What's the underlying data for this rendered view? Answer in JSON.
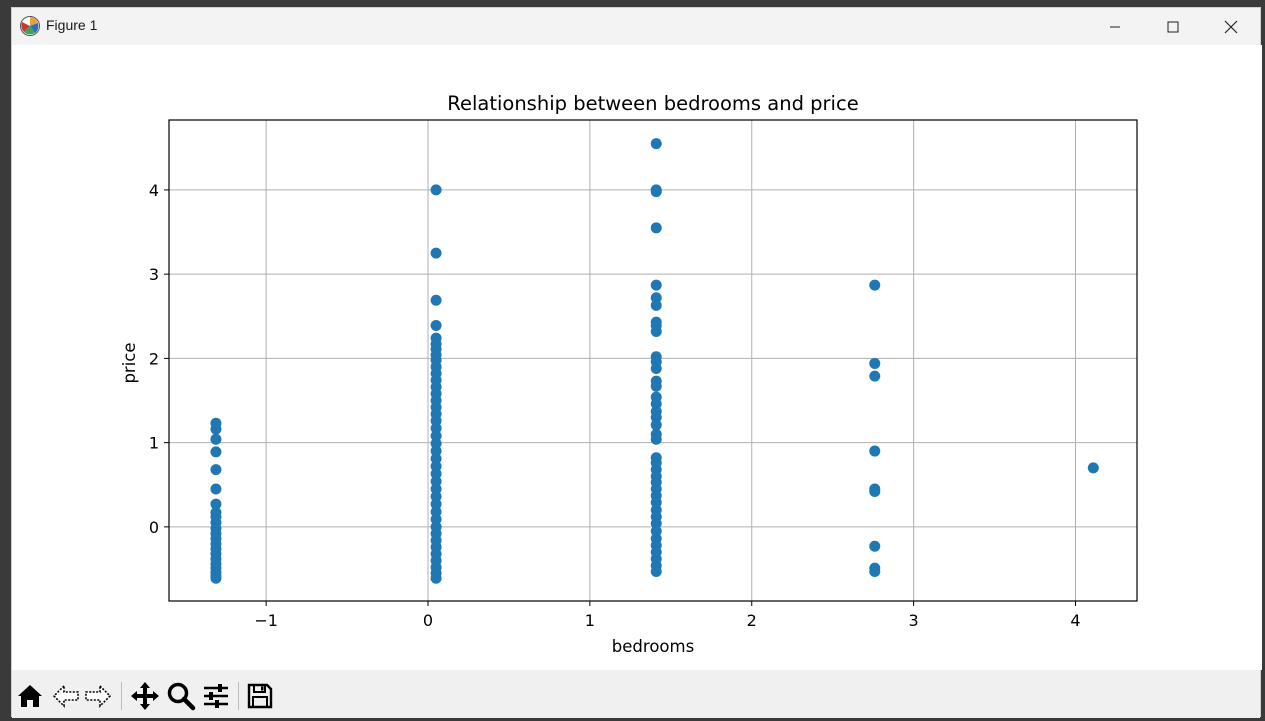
{
  "window": {
    "title": "Figure 1",
    "icons": {
      "app": "matplotlib-icon",
      "minimize": "minimize-icon",
      "maximize": "maximize-icon",
      "close": "close-icon"
    }
  },
  "toolbar": {
    "icons": [
      "home-icon",
      "back-arrow-icon",
      "forward-arrow-icon",
      "pan-icon",
      "zoom-icon",
      "configure-subplots-icon",
      "save-icon"
    ]
  },
  "chart_data": {
    "type": "scatter",
    "title": "Relationship between bedrooms and price",
    "xlabel": "bedrooms",
    "ylabel": "price",
    "xlim": [
      -1.6,
      4.38
    ],
    "ylim": [
      -0.88,
      4.83
    ],
    "xticks": [
      -1,
      0,
      1,
      2,
      3,
      4
    ],
    "xtick_labels": [
      "−1",
      "0",
      "1",
      "2",
      "3",
      "4"
    ],
    "yticks": [
      0,
      1,
      2,
      3,
      4
    ],
    "yticks_labels": [
      "0",
      "1",
      "2",
      "3",
      "4"
    ],
    "grid": true,
    "color": "#1f77b4",
    "series": [
      {
        "points": [
          [
            -1.31,
            1.23
          ],
          [
            -1.31,
            1.16
          ],
          [
            -1.31,
            1.04
          ],
          [
            -1.31,
            0.89
          ],
          [
            -1.31,
            0.68
          ],
          [
            -1.31,
            0.45
          ],
          [
            -1.31,
            0.27
          ],
          [
            -1.31,
            0.17
          ],
          [
            -1.31,
            0.12
          ],
          [
            -1.31,
            0.05
          ],
          [
            -1.31,
            -0.02
          ],
          [
            -1.31,
            -0.08
          ],
          [
            -1.31,
            -0.14
          ],
          [
            -1.31,
            -0.2
          ],
          [
            -1.31,
            -0.26
          ],
          [
            -1.31,
            -0.32
          ],
          [
            -1.31,
            -0.38
          ],
          [
            -1.31,
            -0.44
          ],
          [
            -1.31,
            -0.49
          ],
          [
            -1.31,
            -0.54
          ],
          [
            -1.31,
            -0.58
          ],
          [
            -1.31,
            -0.61
          ],
          [
            0.05,
            4.0
          ],
          [
            0.05,
            3.25
          ],
          [
            0.05,
            2.69
          ],
          [
            0.05,
            2.39
          ],
          [
            0.05,
            2.24
          ],
          [
            0.05,
            2.17
          ],
          [
            0.05,
            2.11
          ],
          [
            0.05,
            2.04
          ],
          [
            0.05,
            1.98
          ],
          [
            0.05,
            1.9
          ],
          [
            0.05,
            1.82
          ],
          [
            0.05,
            1.74
          ],
          [
            0.05,
            1.66
          ],
          [
            0.05,
            1.58
          ],
          [
            0.05,
            1.5
          ],
          [
            0.05,
            1.42
          ],
          [
            0.05,
            1.34
          ],
          [
            0.05,
            1.26
          ],
          [
            0.05,
            1.17
          ],
          [
            0.05,
            1.08
          ],
          [
            0.05,
            0.99
          ],
          [
            0.05,
            0.9
          ],
          [
            0.05,
            0.81
          ],
          [
            0.05,
            0.72
          ],
          [
            0.05,
            0.63
          ],
          [
            0.05,
            0.54
          ],
          [
            0.05,
            0.45
          ],
          [
            0.05,
            0.36
          ],
          [
            0.05,
            0.27
          ],
          [
            0.05,
            0.18
          ],
          [
            0.05,
            0.09
          ],
          [
            0.05,
            0.0
          ],
          [
            0.05,
            -0.08
          ],
          [
            0.05,
            -0.16
          ],
          [
            0.05,
            -0.24
          ],
          [
            0.05,
            -0.32
          ],
          [
            0.05,
            -0.4
          ],
          [
            0.05,
            -0.48
          ],
          [
            0.05,
            -0.55
          ],
          [
            0.05,
            -0.61
          ],
          [
            1.41,
            4.55
          ],
          [
            1.41,
            4.0
          ],
          [
            1.41,
            3.98
          ],
          [
            1.41,
            3.55
          ],
          [
            1.41,
            2.87
          ],
          [
            1.41,
            2.72
          ],
          [
            1.41,
            2.63
          ],
          [
            1.41,
            2.43
          ],
          [
            1.41,
            2.39
          ],
          [
            1.41,
            2.32
          ],
          [
            1.41,
            2.02
          ],
          [
            1.41,
            1.96
          ],
          [
            1.41,
            1.88
          ],
          [
            1.41,
            1.73
          ],
          [
            1.41,
            1.67
          ],
          [
            1.41,
            1.54
          ],
          [
            1.41,
            1.46
          ],
          [
            1.41,
            1.37
          ],
          [
            1.41,
            1.3
          ],
          [
            1.41,
            1.21
          ],
          [
            1.41,
            1.1
          ],
          [
            1.41,
            1.04
          ],
          [
            1.41,
            0.82
          ],
          [
            1.41,
            0.76
          ],
          [
            1.41,
            0.68
          ],
          [
            1.41,
            0.6
          ],
          [
            1.41,
            0.53
          ],
          [
            1.41,
            0.45
          ],
          [
            1.41,
            0.37
          ],
          [
            1.41,
            0.29
          ],
          [
            1.41,
            0.2
          ],
          [
            1.41,
            0.12
          ],
          [
            1.41,
            0.04
          ],
          [
            1.41,
            -0.05
          ],
          [
            1.41,
            -0.14
          ],
          [
            1.41,
            -0.22
          ],
          [
            1.41,
            -0.3
          ],
          [
            1.41,
            -0.38
          ],
          [
            1.41,
            -0.46
          ],
          [
            1.41,
            -0.53
          ],
          [
            2.76,
            2.87
          ],
          [
            2.76,
            1.94
          ],
          [
            2.76,
            1.79
          ],
          [
            2.76,
            0.9
          ],
          [
            2.76,
            0.45
          ],
          [
            2.76,
            0.42
          ],
          [
            2.76,
            -0.23
          ],
          [
            2.76,
            -0.49
          ],
          [
            2.76,
            -0.53
          ],
          [
            4.11,
            0.7
          ]
        ]
      }
    ]
  }
}
